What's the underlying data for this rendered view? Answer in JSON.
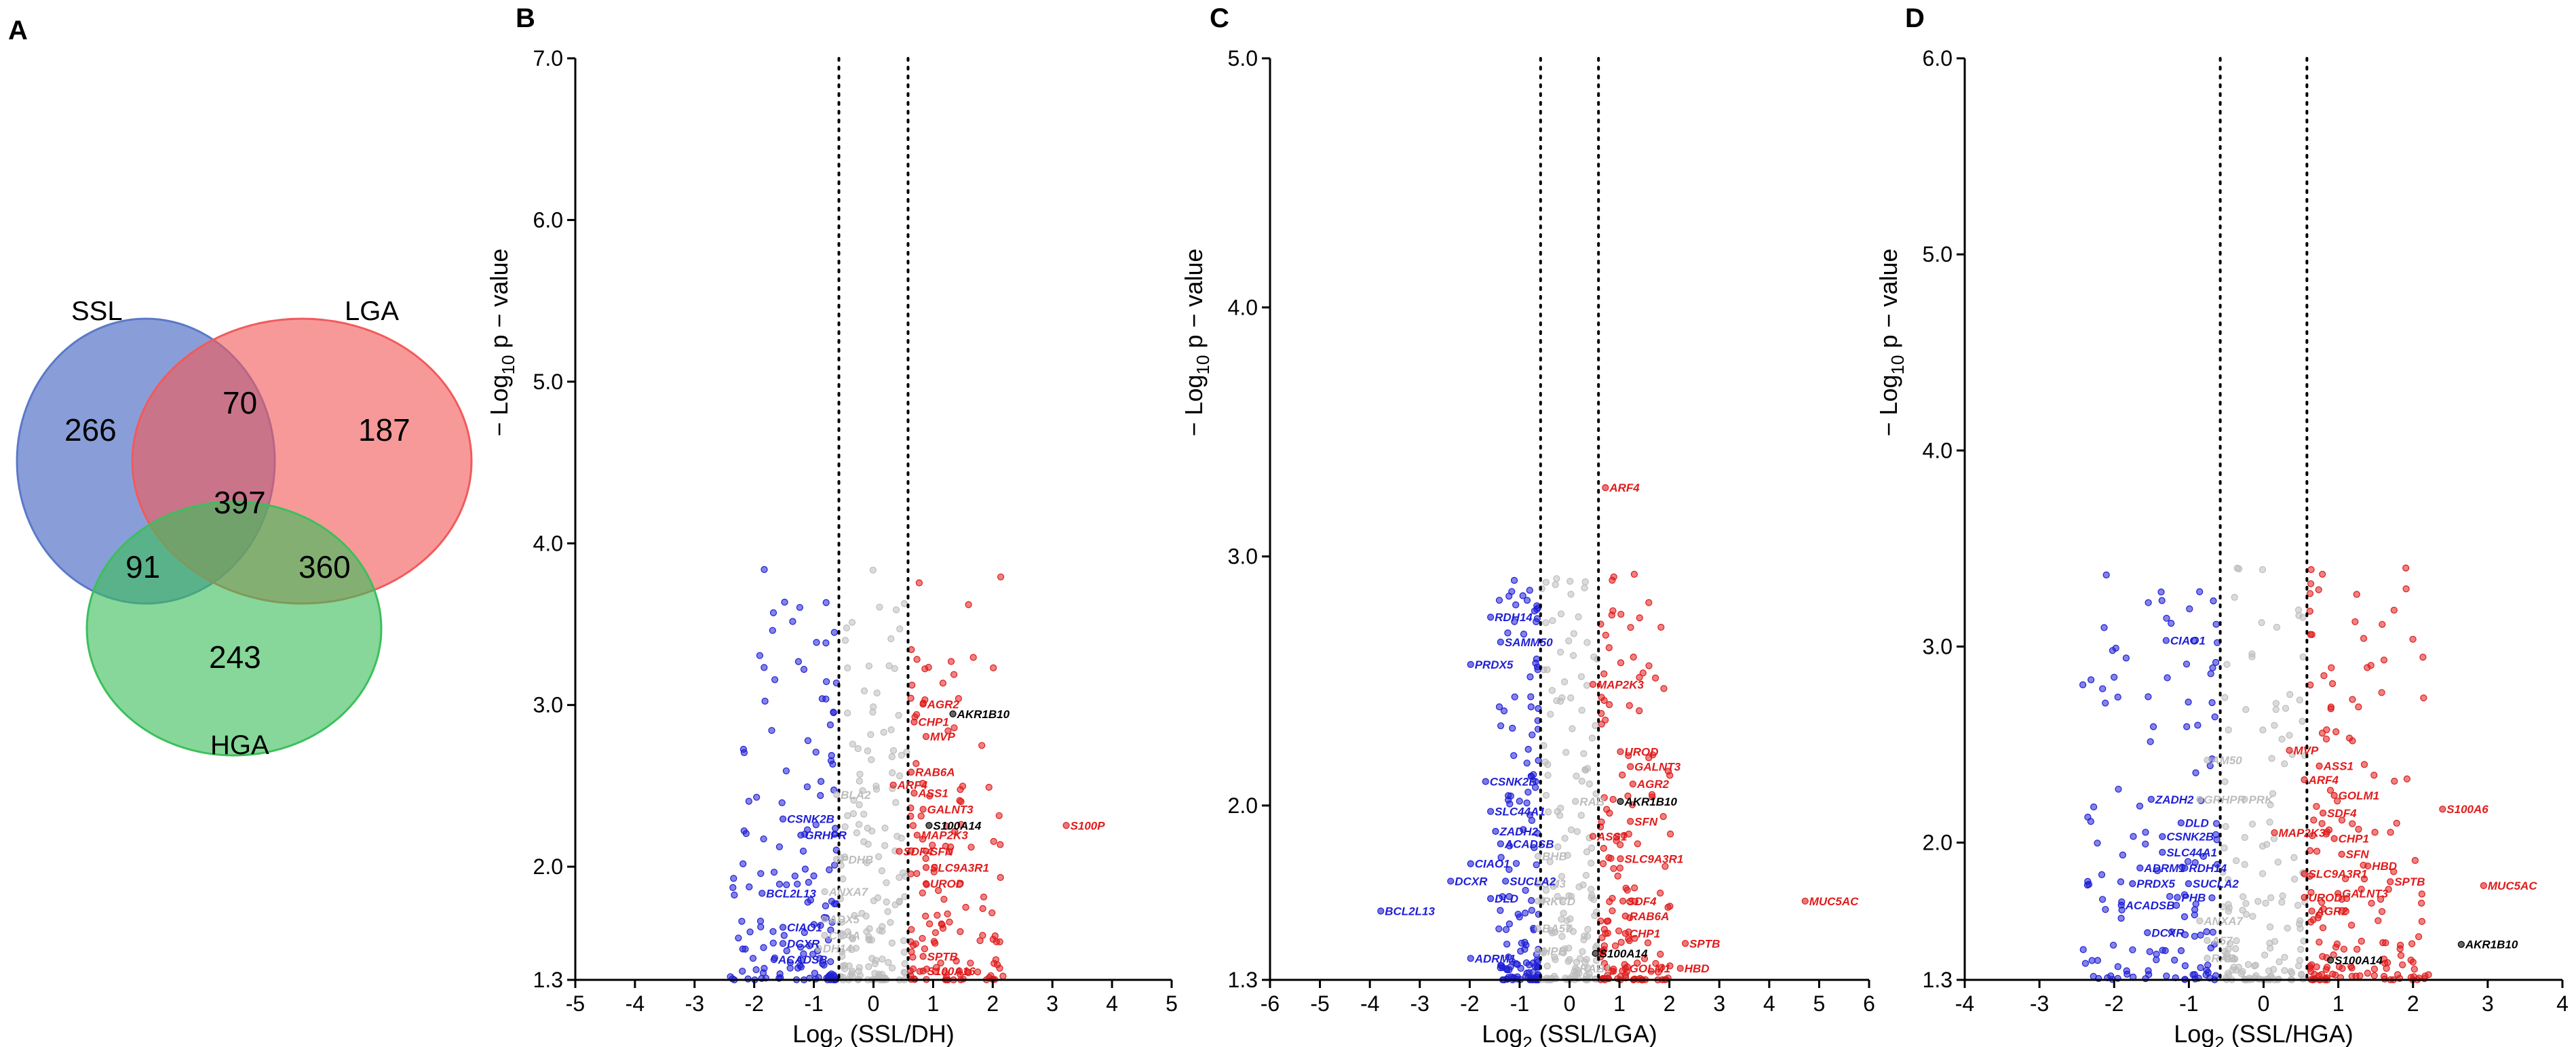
{
  "panels": {
    "A": "A",
    "B": "B",
    "C": "C",
    "D": "D"
  },
  "colors": {
    "down": "#1f1fd6",
    "up": "#e01c1c",
    "ns": "#bdbdbd",
    "hit": "#000000",
    "venn_ssl": "#5b79c9",
    "venn_lga": "#f25a5a",
    "venn_hga": "#3cbf5b"
  },
  "venn": {
    "labels": {
      "ssl": "SSL",
      "lga": "LGA",
      "hga": "HGA"
    },
    "counts": {
      "ssl_only": "266",
      "lga_only": "187",
      "hga_only": "243",
      "ssl_lga": "70",
      "ssl_hga": "91",
      "lga_hga": "360",
      "all": "397"
    }
  },
  "chart_data": [
    {
      "id": "B",
      "type": "scatter",
      "title": "",
      "xlabel_main": "Log",
      "xlabel_sub": "2",
      "xlabel_tail": " (SSL/DH)",
      "ylabel_prefix": "− Log",
      "ylabel_sub": "10",
      "ylabel_tail": " p − value",
      "xlim": [
        -5,
        5
      ],
      "ylim": [
        1.3,
        7.0
      ],
      "xticks": [
        -5,
        -4,
        -3,
        -2,
        -1,
        0,
        1,
        2,
        3,
        4,
        5
      ],
      "xtick_labels": [
        "-5",
        "-4",
        "-3",
        "-2",
        "-1",
        "0",
        "1",
        "2",
        "3",
        "4",
        "5"
      ],
      "yticks": [
        1.3,
        2.0,
        3.0,
        4.0,
        5.0,
        6.0,
        7.0
      ],
      "ytick_labels": [
        "1.3",
        "2.0",
        "3.0",
        "4.0",
        "5.0",
        "6.0",
        "7.0"
      ],
      "thresholds": [
        -0.58,
        0.58
      ],
      "labels_up": [
        {
          "t": "AGR2",
          "x": 0.9,
          "y": 2.98
        },
        {
          "t": "CHP1",
          "x": 0.75,
          "y": 2.87
        },
        {
          "t": "MVP",
          "x": 0.95,
          "y": 2.78
        },
        {
          "t": "RAB6A",
          "x": 0.7,
          "y": 2.56
        },
        {
          "t": "ARF4",
          "x": 0.4,
          "y": 2.48
        },
        {
          "t": "ASS1",
          "x": 0.75,
          "y": 2.43
        },
        {
          "t": "GALNT3",
          "x": 0.9,
          "y": 2.33
        },
        {
          "t": "MAP2K3",
          "x": 0.8,
          "y": 2.17
        },
        {
          "t": "SDF4",
          "x": 0.5,
          "y": 2.07
        },
        {
          "t": "SFN",
          "x": 0.95,
          "y": 2.07
        },
        {
          "t": "SLC9A3R1",
          "x": 0.95,
          "y": 1.97
        },
        {
          "t": "UROD",
          "x": 0.95,
          "y": 1.87
        },
        {
          "t": "S100P",
          "x": 3.3,
          "y": 2.23
        },
        {
          "t": "SPTB",
          "x": 0.9,
          "y": 1.42
        },
        {
          "t": "S100A16",
          "x": 0.9,
          "y": 1.33
        }
      ],
      "labels_down": [
        {
          "t": "CSNK2B",
          "x": -1.45,
          "y": 2.27
        },
        {
          "t": "GRHPR",
          "x": -1.15,
          "y": 2.17
        },
        {
          "t": "BCL2L13",
          "x": -1.8,
          "y": 1.81
        },
        {
          "t": "CIAO1",
          "x": -1.45,
          "y": 1.6
        },
        {
          "t": "DCXR",
          "x": -1.45,
          "y": 1.5
        },
        {
          "t": "ACADSB",
          "x": -1.6,
          "y": 1.4
        }
      ],
      "labels_ns": [
        {
          "t": "BLA2",
          "x": -0.55,
          "y": 2.42
        },
        {
          "t": "PDHB",
          "x": -0.55,
          "y": 2.02
        },
        {
          "t": "ANXA7",
          "x": -0.75,
          "y": 1.82
        },
        {
          "t": "ADX5",
          "x": -0.75,
          "y": 1.65
        },
        {
          "t": "CC4A",
          "x": -0.75,
          "y": 1.55
        },
        {
          "t": "DH14",
          "x": -0.85,
          "y": 1.47
        }
      ],
      "labels_hit": [
        {
          "t": "AKR1B10",
          "x": 1.4,
          "y": 2.92
        },
        {
          "t": "S100A14",
          "x": 1.0,
          "y": 2.23
        }
      ]
    },
    {
      "id": "C",
      "type": "scatter",
      "title": "",
      "xlabel_main": "Log",
      "xlabel_sub": "2",
      "xlabel_tail": " (SSL/LGA)",
      "ylabel_prefix": "− Log",
      "ylabel_sub": "10",
      "ylabel_tail": " p − value",
      "xlim": [
        -6,
        6
      ],
      "ylim": [
        1.3,
        5.0
      ],
      "xticks": [
        -6,
        -5,
        -4,
        -3,
        -2,
        -1,
        0,
        1,
        2,
        3,
        4,
        5,
        6
      ],
      "xtick_labels": [
        "-6",
        "-5",
        "-4",
        "-3",
        "-2",
        "-1",
        "0",
        "1",
        "2",
        "3",
        "4",
        "5",
        "6"
      ],
      "yticks": [
        1.3,
        2.0,
        3.0,
        4.0,
        5.0
      ],
      "ytick_labels": [
        "1.3",
        "2.0",
        "3.0",
        "4.0",
        "5.0"
      ],
      "thresholds": [
        -0.58,
        0.58
      ],
      "labels_up": [
        {
          "t": "ARF4",
          "x": 0.8,
          "y": 3.26
        },
        {
          "t": "MAP2K3",
          "x": 0.55,
          "y": 2.47
        },
        {
          "t": "UROD",
          "x": 1.1,
          "y": 2.2
        },
        {
          "t": "GALNT3",
          "x": 1.3,
          "y": 2.14
        },
        {
          "t": "AGR2",
          "x": 1.35,
          "y": 2.07
        },
        {
          "t": "SFN",
          "x": 1.3,
          "y": 1.92
        },
        {
          "t": "ASS1",
          "x": 0.55,
          "y": 1.86
        },
        {
          "t": "SLC9A3R1",
          "x": 1.1,
          "y": 1.77
        },
        {
          "t": "SDF4",
          "x": 1.15,
          "y": 1.6
        },
        {
          "t": "RAB6A",
          "x": 1.2,
          "y": 1.54
        },
        {
          "t": "CHP1",
          "x": 1.2,
          "y": 1.47
        },
        {
          "t": "SPTB",
          "x": 2.4,
          "y": 1.43
        },
        {
          "t": "HBD",
          "x": 2.3,
          "y": 1.33
        },
        {
          "t": "GOLM1",
          "x": 1.2,
          "y": 1.33
        },
        {
          "t": "MUC5AC",
          "x": 4.8,
          "y": 1.6
        }
      ],
      "labels_down": [
        {
          "t": "RDH14",
          "x": -1.5,
          "y": 2.74
        },
        {
          "t": "SAMM50",
          "x": -1.3,
          "y": 2.64
        },
        {
          "t": "PRDX5",
          "x": -1.9,
          "y": 2.55
        },
        {
          "t": "CSNK2B",
          "x": -1.6,
          "y": 2.08
        },
        {
          "t": "SLC44A1",
          "x": -1.5,
          "y": 1.96
        },
        {
          "t": "ZADH2",
          "x": -1.4,
          "y": 1.88
        },
        {
          "t": "ACADSB",
          "x": -1.3,
          "y": 1.83
        },
        {
          "t": "CIAO1",
          "x": -1.9,
          "y": 1.75
        },
        {
          "t": "DCXR",
          "x": -2.3,
          "y": 1.68
        },
        {
          "t": "SUCLA2",
          "x": -1.2,
          "y": 1.68
        },
        {
          "t": "DLD",
          "x": -1.5,
          "y": 1.61
        },
        {
          "t": "BCL2L13",
          "x": -3.7,
          "y": 1.56
        },
        {
          "t": "ADRM1",
          "x": -1.9,
          "y": 1.37
        }
      ],
      "labels_ns": [
        {
          "t": "RAB",
          "x": 0.2,
          "y": 2.0
        },
        {
          "t": "BHB",
          "x": -0.55,
          "y": 1.78
        },
        {
          "t": "SM3",
          "x": -0.55,
          "y": 1.67
        },
        {
          "t": "RKCD",
          "x": -0.55,
          "y": 1.6
        },
        {
          "t": "BA57",
          "x": -0.55,
          "y": 1.49
        },
        {
          "t": "HPB",
          "x": -0.55,
          "y": 1.4
        },
        {
          "t": "RAB1",
          "x": 0.2,
          "y": 1.33
        }
      ],
      "labels_hit": [
        {
          "t": "AKR1B10",
          "x": 1.1,
          "y": 2.0
        },
        {
          "t": "S100A14",
          "x": 0.6,
          "y": 1.39
        }
      ]
    },
    {
      "id": "D",
      "type": "scatter",
      "title": "",
      "xlabel_main": "Log",
      "xlabel_sub": "2",
      "xlabel_tail": " (SSL/HGA)",
      "ylabel_prefix": "− Log",
      "ylabel_sub": "10",
      "ylabel_tail": " p − value",
      "xlim": [
        -4,
        4
      ],
      "ylim": [
        1.3,
        6.0
      ],
      "xticks": [
        -4,
        -3,
        -2,
        -1,
        0,
        1,
        2,
        3,
        4
      ],
      "xtick_labels": [
        "-4",
        "-3",
        "-2",
        "-1",
        "0",
        "1",
        "2",
        "3",
        "4"
      ],
      "yticks": [
        1.3,
        2.0,
        3.0,
        4.0,
        5.0,
        6.0
      ],
      "ytick_labels": [
        "1.3",
        "2.0",
        "3.0",
        "4.0",
        "5.0",
        "6.0"
      ],
      "thresholds": [
        -0.58,
        0.58
      ],
      "labels_up": [
        {
          "t": "MVP",
          "x": 0.4,
          "y": 2.45
        },
        {
          "t": "ASS1",
          "x": 0.8,
          "y": 2.37
        },
        {
          "t": "ARF4",
          "x": 0.6,
          "y": 2.3
        },
        {
          "t": "GOLM1",
          "x": 1.0,
          "y": 2.22
        },
        {
          "t": "SDF4",
          "x": 0.85,
          "y": 2.13
        },
        {
          "t": "S100A6",
          "x": 2.45,
          "y": 2.15
        },
        {
          "t": "MAP2K3",
          "x": 0.2,
          "y": 2.03
        },
        {
          "t": "CHP1",
          "x": 1.0,
          "y": 2.0
        },
        {
          "t": "SFN",
          "x": 1.1,
          "y": 1.92
        },
        {
          "t": "HBD",
          "x": 1.45,
          "y": 1.86
        },
        {
          "t": "SLC9A3R1",
          "x": 0.6,
          "y": 1.82
        },
        {
          "t": "SPTB",
          "x": 1.75,
          "y": 1.78
        },
        {
          "t": "MUC5AC",
          "x": 3.0,
          "y": 1.76
        },
        {
          "t": "UROD",
          "x": 0.6,
          "y": 1.7
        },
        {
          "t": "GALNT3",
          "x": 1.05,
          "y": 1.72
        },
        {
          "t": "AGR2",
          "x": 0.7,
          "y": 1.63
        }
      ],
      "labels_down": [
        {
          "t": "CIAO1",
          "x": -1.25,
          "y": 3.01
        },
        {
          "t": "ZADH2",
          "x": -1.45,
          "y": 2.2
        },
        {
          "t": "DLD",
          "x": -1.05,
          "y": 2.08
        },
        {
          "t": "CSNK2B",
          "x": -1.3,
          "y": 2.01
        },
        {
          "t": "SLC44A1",
          "x": -1.3,
          "y": 1.93
        },
        {
          "t": "ADRM1",
          "x": -1.6,
          "y": 1.85
        },
        {
          "t": "RDH14",
          "x": -1.0,
          "y": 1.85
        },
        {
          "t": "PRDX5",
          "x": -1.7,
          "y": 1.77
        },
        {
          "t": "SUCLA2",
          "x": -0.95,
          "y": 1.77
        },
        {
          "t": "PHB",
          "x": -1.1,
          "y": 1.7
        },
        {
          "t": "ACADSB",
          "x": -1.85,
          "y": 1.66
        },
        {
          "t": "DCXR",
          "x": -1.5,
          "y": 1.52
        }
      ],
      "labels_ns": [
        {
          "t": "AM50",
          "x": -0.7,
          "y": 2.4
        },
        {
          "t": "GRHPR",
          "x": -0.8,
          "y": 2.2
        },
        {
          "t": "PRK",
          "x": -0.2,
          "y": 2.2
        },
        {
          "t": "ANXA7",
          "x": -0.8,
          "y": 1.58
        },
        {
          "t": "A57",
          "x": -0.7,
          "y": 1.48
        },
        {
          "t": "RAB",
          "x": -0.7,
          "y": 1.39
        }
      ],
      "labels_hit": [
        {
          "t": "S100A14",
          "x": 0.95,
          "y": 1.38
        },
        {
          "t": "AKR1B10",
          "x": 2.7,
          "y": 1.46
        }
      ]
    }
  ]
}
